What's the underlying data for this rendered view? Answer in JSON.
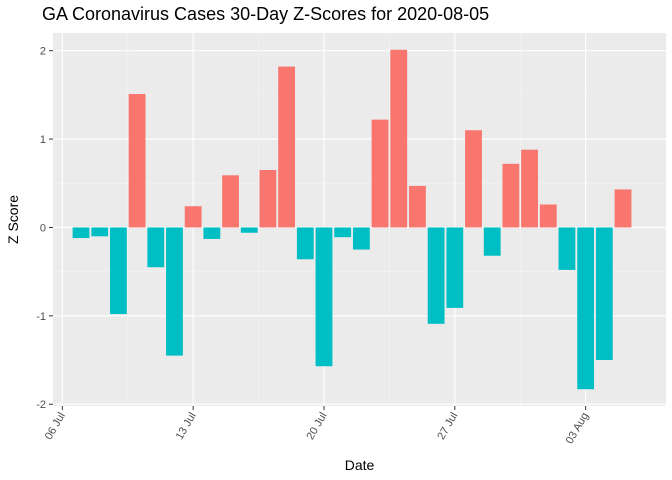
{
  "chart_data": {
    "type": "bar",
    "title": "GA Coronavirus Cases 30-Day Z-Scores for 2020-08-05",
    "xlabel": "Date",
    "ylabel": "Z Score",
    "ylim": [
      -2.02,
      2.2
    ],
    "yticks": [
      -2,
      -1,
      0,
      1,
      2
    ],
    "xdomain": [
      "2020-07-06",
      "2020-08-06"
    ],
    "xticks": [
      {
        "date": "2020-07-06",
        "label": "06 Jul"
      },
      {
        "date": "2020-07-13",
        "label": "13 Jul"
      },
      {
        "date": "2020-07-20",
        "label": "20 Jul"
      },
      {
        "date": "2020-07-27",
        "label": "27 Jul"
      },
      {
        "date": "2020-08-03",
        "label": "03 Aug"
      }
    ],
    "colors": {
      "positive": "#F8766D",
      "negative": "#00BFC4",
      "panel": "#EBEBEB",
      "grid_major": "#FFFFFF",
      "grid_minor": "#F4F4F4"
    },
    "x": [
      "2020-07-07",
      "2020-07-08",
      "2020-07-09",
      "2020-07-10",
      "2020-07-11",
      "2020-07-12",
      "2020-07-13",
      "2020-07-14",
      "2020-07-15",
      "2020-07-16",
      "2020-07-17",
      "2020-07-18",
      "2020-07-19",
      "2020-07-20",
      "2020-07-21",
      "2020-07-22",
      "2020-07-23",
      "2020-07-24",
      "2020-07-25",
      "2020-07-26",
      "2020-07-27",
      "2020-07-28",
      "2020-07-29",
      "2020-07-30",
      "2020-07-31",
      "2020-08-01",
      "2020-08-02",
      "2020-08-03",
      "2020-08-04",
      "2020-08-05"
    ],
    "values": [
      -0.12,
      -0.1,
      -0.98,
      1.51,
      -0.45,
      -1.45,
      0.24,
      -0.13,
      0.59,
      -0.06,
      0.65,
      1.82,
      -0.36,
      -1.57,
      -0.11,
      -0.25,
      1.22,
      2.01,
      0.47,
      -1.09,
      -0.91,
      1.1,
      -0.32,
      0.72,
      0.88,
      0.26,
      -0.48,
      -1.83,
      -1.5,
      0.43
    ]
  }
}
